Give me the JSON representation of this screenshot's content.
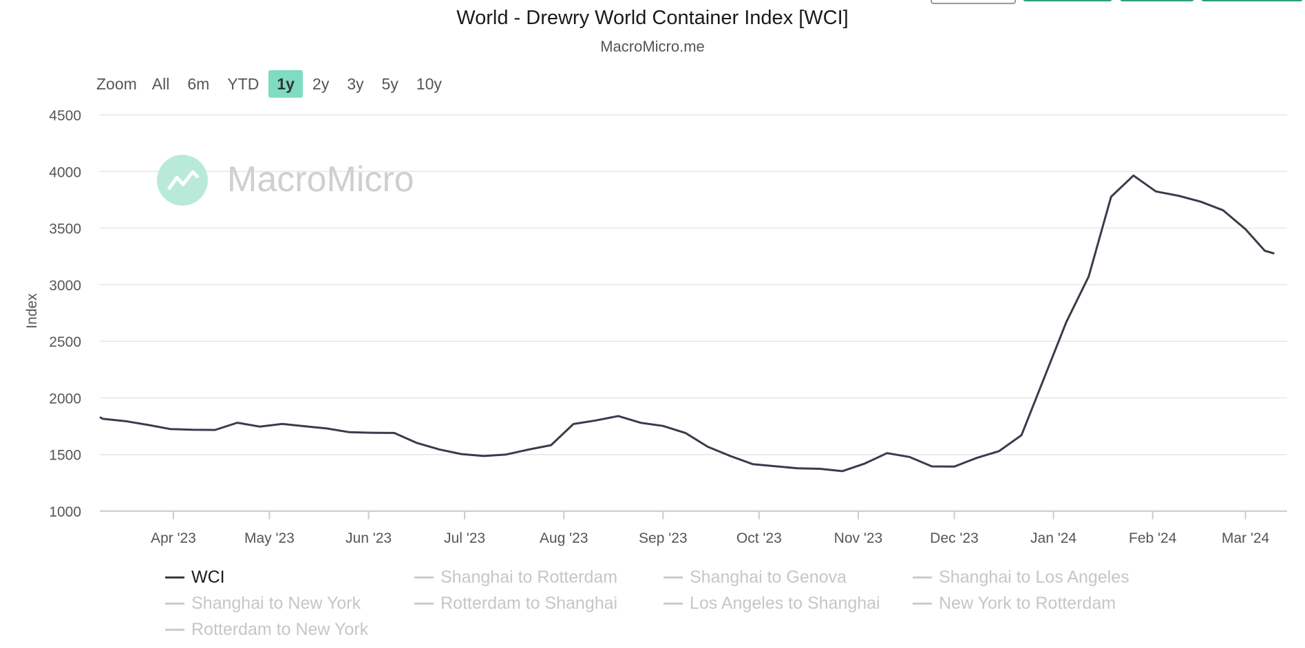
{
  "chart_data": {
    "type": "line",
    "title": "World - Drewry World Container Index [WCI]",
    "subtitle": "MacroMicro.me",
    "watermark": "MacroMicro",
    "ylabel": "Index",
    "xlabel": "",
    "ylim": [
      1000,
      4500
    ],
    "yticks": [
      1000,
      1500,
      2000,
      2500,
      3000,
      3500,
      4000,
      4500
    ],
    "xlim": [
      "2023-03-09",
      "2024-03-14"
    ],
    "xticks": [
      {
        "date": "2023-04-01",
        "label": "Apr '23"
      },
      {
        "date": "2023-05-01",
        "label": "May '23"
      },
      {
        "date": "2023-06-01",
        "label": "Jun '23"
      },
      {
        "date": "2023-07-01",
        "label": "Jul '23"
      },
      {
        "date": "2023-08-01",
        "label": "Aug '23"
      },
      {
        "date": "2023-09-01",
        "label": "Sep '23"
      },
      {
        "date": "2023-10-01",
        "label": "Oct '23"
      },
      {
        "date": "2023-11-01",
        "label": "Nov '23"
      },
      {
        "date": "2023-12-01",
        "label": "Dec '23"
      },
      {
        "date": "2024-01-01",
        "label": "Jan '24"
      },
      {
        "date": "2024-02-01",
        "label": "Feb '24"
      },
      {
        "date": "2024-03-01",
        "label": "Mar '24"
      }
    ],
    "grid": true,
    "legend_position": "bottom",
    "series": [
      {
        "name": "WCI",
        "color": "#3a3a4a",
        "points": [
          [
            "2023-03-09",
            1830
          ],
          [
            "2023-03-10",
            1815
          ],
          [
            "2023-03-17",
            1795
          ],
          [
            "2023-03-24",
            1762
          ],
          [
            "2023-03-31",
            1725
          ],
          [
            "2023-04-07",
            1718
          ],
          [
            "2023-04-14",
            1717
          ],
          [
            "2023-04-21",
            1781
          ],
          [
            "2023-04-28",
            1746
          ],
          [
            "2023-05-05",
            1770
          ],
          [
            "2023-05-12",
            1750
          ],
          [
            "2023-05-19",
            1730
          ],
          [
            "2023-05-26",
            1697
          ],
          [
            "2023-06-02",
            1692
          ],
          [
            "2023-06-09",
            1690
          ],
          [
            "2023-06-16",
            1603
          ],
          [
            "2023-06-23",
            1545
          ],
          [
            "2023-06-30",
            1504
          ],
          [
            "2023-07-07",
            1487
          ],
          [
            "2023-07-14",
            1500
          ],
          [
            "2023-07-21",
            1544
          ],
          [
            "2023-07-28",
            1583
          ],
          [
            "2023-08-04",
            1769
          ],
          [
            "2023-08-11",
            1801
          ],
          [
            "2023-08-18",
            1840
          ],
          [
            "2023-08-25",
            1780
          ],
          [
            "2023-09-01",
            1752
          ],
          [
            "2023-09-08",
            1690
          ],
          [
            "2023-09-15",
            1568
          ],
          [
            "2023-09-22",
            1487
          ],
          [
            "2023-09-29",
            1415
          ],
          [
            "2023-10-06",
            1397
          ],
          [
            "2023-10-13",
            1378
          ],
          [
            "2023-10-20",
            1374
          ],
          [
            "2023-10-27",
            1353
          ],
          [
            "2023-11-03",
            1420
          ],
          [
            "2023-11-10",
            1512
          ],
          [
            "2023-11-17",
            1478
          ],
          [
            "2023-11-24",
            1395
          ],
          [
            "2023-12-01",
            1393
          ],
          [
            "2023-12-08",
            1470
          ],
          [
            "2023-12-15",
            1530
          ],
          [
            "2023-12-22",
            1671
          ],
          [
            "2023-12-29",
            2170
          ],
          [
            "2024-01-05",
            2670
          ],
          [
            "2024-01-12",
            3072
          ],
          [
            "2024-01-19",
            3777
          ],
          [
            "2024-01-26",
            3964
          ],
          [
            "2024-02-02",
            3824
          ],
          [
            "2024-02-09",
            3786
          ],
          [
            "2024-02-16",
            3733
          ],
          [
            "2024-02-23",
            3657
          ],
          [
            "2024-03-01",
            3490
          ],
          [
            "2024-03-07",
            3300
          ],
          [
            "2024-03-10",
            3275
          ]
        ]
      }
    ]
  },
  "zoom": {
    "label": "Zoom",
    "buttons": [
      "All",
      "6m",
      "YTD",
      "1y",
      "2y",
      "3y",
      "5y",
      "10y"
    ],
    "active": "1y"
  },
  "legend": {
    "items": [
      {
        "label": "WCI",
        "visible": true
      },
      {
        "label": "Shanghai to Rotterdam",
        "visible": false
      },
      {
        "label": "Shanghai to Genova",
        "visible": false
      },
      {
        "label": "Shanghai to Los Angeles",
        "visible": false
      },
      {
        "label": "Shanghai to New York",
        "visible": false
      },
      {
        "label": "Rotterdam to Shanghai",
        "visible": false
      },
      {
        "label": "Los Angeles to Shanghai",
        "visible": false
      },
      {
        "label": "New York to Rotterdam",
        "visible": false
      },
      {
        "label": "Rotterdam to New York",
        "visible": false
      }
    ]
  },
  "colors": {
    "line": "#3a3a4a",
    "grid": "#e6e6e6",
    "zoom_active": "#7fdcc0",
    "watermark_logo": "#b9ead9",
    "watermark_text": "#cfcfcf",
    "top_button_green": "#2e9e78"
  }
}
